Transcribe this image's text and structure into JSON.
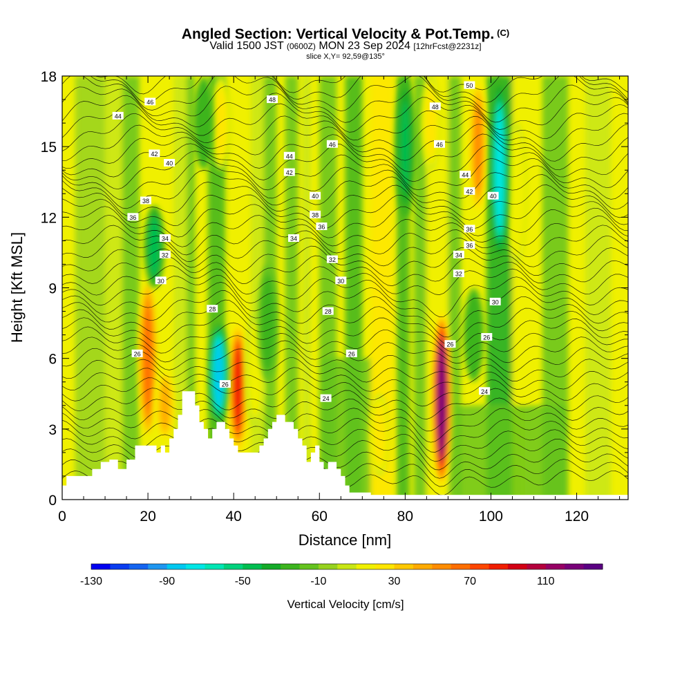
{
  "header": {
    "title": "Angled Section: Vertical Velocity & Pot.Temp.",
    "copyright": "(C)",
    "valid_prefix": "Valid 1500 JST",
    "valid_utc": "(0600Z)",
    "valid_date": "MON 23 Sep 2024",
    "forecast": "[12hrFcst@2231z]",
    "slice": "slice X,Y= 92,59@135°"
  },
  "chart_data": {
    "type": "heatmap",
    "title": "Angled Section: Vertical Velocity & Pot.Temp.",
    "xlabel": "Distance [nm]",
    "ylabel": "Height [Kft MSL]",
    "xlim": [
      0,
      132
    ],
    "ylim": [
      0,
      18
    ],
    "x_ticks": [
      "0",
      "20",
      "40",
      "60",
      "80",
      "100",
      "120"
    ],
    "y_ticks": [
      "0",
      "3",
      "6",
      "9",
      "12",
      "15",
      "18"
    ],
    "fill_variable": "Vertical Velocity [cm/s]",
    "colorbar": {
      "label": "Vertical Velocity [cm/s]",
      "tick_labels": [
        "-130",
        "-90",
        "-50",
        "-10",
        "30",
        "70",
        "110"
      ],
      "colors": [
        "#0000f0",
        "#0a3cf0",
        "#1464f0",
        "#1e96f0",
        "#00c8f0",
        "#00e6e6",
        "#00e6b4",
        "#00d27d",
        "#00be50",
        "#14aa28",
        "#3cb41e",
        "#64c31e",
        "#96d21e",
        "#c8e614",
        "#f0f000",
        "#ffe600",
        "#ffc800",
        "#ffaa00",
        "#ff8c00",
        "#ff6e00",
        "#ff4600",
        "#f01e00",
        "#d20014",
        "#b4003c",
        "#960064",
        "#780078",
        "#5a0082"
      ]
    },
    "updraft_cores": [
      {
        "x": 20,
        "y_bottom": 2.5,
        "y_top": 9.5,
        "value": 75
      },
      {
        "x": 24,
        "y_bottom": 2.5,
        "y_top": 5.5,
        "value": 55
      },
      {
        "x": 41,
        "y_bottom": 2.0,
        "y_top": 7.5,
        "value": 95
      },
      {
        "x": 45,
        "y_bottom": 3.0,
        "y_top": 8.0,
        "value": 20
      },
      {
        "x": 74,
        "y_bottom": 1.0,
        "y_top": 4.5,
        "value": 35
      },
      {
        "x": 88.5,
        "y_bottom": 0.5,
        "y_top": 8.0,
        "value": 135
      },
      {
        "x": 97,
        "y_bottom": 12,
        "y_top": 18,
        "value": 60
      },
      {
        "x": 86,
        "y_bottom": 14,
        "y_top": 18,
        "value": 30
      },
      {
        "x": 106,
        "y_bottom": 10,
        "y_top": 16,
        "value": 25
      },
      {
        "x": 37,
        "y_bottom": 14,
        "y_top": 18,
        "value": 30
      }
    ],
    "downdraft_cores": [
      {
        "x": 36.5,
        "y_bottom": 3.2,
        "y_top": 7.5,
        "value": -85
      },
      {
        "x": 102,
        "y_bottom": 10,
        "y_top": 18,
        "value": -70
      },
      {
        "x": 21.5,
        "y_bottom": 9.0,
        "y_top": 12.5,
        "value": -45
      },
      {
        "x": 80,
        "y_bottom": 12,
        "y_top": 18,
        "value": -40
      },
      {
        "x": 33,
        "y_bottom": 14,
        "y_top": 18,
        "value": -25
      },
      {
        "x": 96,
        "y_bottom": 5,
        "y_top": 9,
        "value": -25
      },
      {
        "x": 48,
        "y_bottom": 5,
        "y_top": 10,
        "value": -20
      }
    ],
    "terrain": [
      [
        0,
        0.6
      ],
      [
        1,
        0.6
      ],
      [
        1,
        1
      ],
      [
        7,
        1
      ],
      [
        7,
        1.3
      ],
      [
        9,
        1.3
      ],
      [
        9,
        1.6
      ],
      [
        11,
        1.6
      ],
      [
        11,
        1.7
      ],
      [
        13,
        1.7
      ],
      [
        13,
        1.3
      ],
      [
        15,
        1.3
      ],
      [
        15,
        1.7
      ],
      [
        17,
        1.7
      ],
      [
        17,
        2.3
      ],
      [
        22,
        2.3
      ],
      [
        22,
        2
      ],
      [
        23,
        2
      ],
      [
        23,
        2.3
      ],
      [
        24,
        2.3
      ],
      [
        24,
        2
      ],
      [
        25,
        2
      ],
      [
        25,
        2.6
      ],
      [
        26,
        2.6
      ],
      [
        26,
        3
      ],
      [
        27,
        3
      ],
      [
        27,
        3.6
      ],
      [
        28,
        3.6
      ],
      [
        28,
        4.6
      ],
      [
        31,
        4.6
      ],
      [
        31,
        4.0
      ],
      [
        32,
        4.0
      ],
      [
        32,
        3.3
      ],
      [
        33,
        3.3
      ],
      [
        33,
        3.0
      ],
      [
        34,
        3.0
      ],
      [
        34,
        2.6
      ],
      [
        35,
        2.6
      ],
      [
        35,
        3.0
      ],
      [
        36,
        3.0
      ],
      [
        36,
        3.3
      ],
      [
        38,
        3.3
      ],
      [
        38,
        3.0
      ],
      [
        39,
        3.0
      ],
      [
        39,
        2.6
      ],
      [
        40,
        2.6
      ],
      [
        40,
        2.3
      ],
      [
        41,
        2.3
      ],
      [
        41,
        2.0
      ],
      [
        46,
        2.0
      ],
      [
        46,
        2.3
      ],
      [
        47,
        2.3
      ],
      [
        47,
        2.6
      ],
      [
        48,
        2.6
      ],
      [
        48,
        3.0
      ],
      [
        49,
        3.0
      ],
      [
        49,
        3.3
      ],
      [
        50,
        3.3
      ],
      [
        50,
        3.6
      ],
      [
        52,
        3.6
      ],
      [
        52,
        3.3
      ],
      [
        54,
        3.3
      ],
      [
        54,
        3.0
      ],
      [
        55,
        3.0
      ],
      [
        55,
        2.6
      ],
      [
        56,
        2.6
      ],
      [
        56,
        2.3
      ],
      [
        57,
        2.3
      ],
      [
        57,
        1.6
      ],
      [
        58,
        1.6
      ],
      [
        58,
        2.0
      ],
      [
        59,
        2.0
      ],
      [
        59,
        2.3
      ],
      [
        60,
        2.3
      ],
      [
        60,
        1.6
      ],
      [
        61,
        1.6
      ],
      [
        61,
        1.3
      ],
      [
        62,
        1.3
      ],
      [
        62,
        1.6
      ],
      [
        64,
        1.6
      ],
      [
        64,
        1.3
      ],
      [
        65,
        1.3
      ],
      [
        65,
        1.0
      ],
      [
        66,
        1.0
      ],
      [
        66,
        0.6
      ],
      [
        67,
        0.6
      ],
      [
        67,
        0.3
      ],
      [
        72,
        0.3
      ],
      [
        72,
        0
      ]
    ],
    "theta_contours": [
      {
        "label": "24",
        "x": 61.5,
        "y": 4.3
      },
      {
        "label": "24",
        "x": 98.5,
        "y": 4.6
      },
      {
        "label": "26",
        "x": 17.5,
        "y": 6.2
      },
      {
        "label": "26",
        "x": 67.5,
        "y": 6.2
      },
      {
        "label": "26",
        "x": 90.5,
        "y": 6.6
      },
      {
        "label": "26",
        "x": 38,
        "y": 4.9
      },
      {
        "label": "26",
        "x": 99,
        "y": 6.9
      },
      {
        "label": "28",
        "x": 35,
        "y": 8.1
      },
      {
        "label": "28",
        "x": 62,
        "y": 8.0
      },
      {
        "label": "30",
        "x": 23,
        "y": 9.3
      },
      {
        "label": "30",
        "x": 65,
        "y": 9.3
      },
      {
        "label": "30",
        "x": 101,
        "y": 8.4
      },
      {
        "label": "32",
        "x": 24,
        "y": 10.4
      },
      {
        "label": "32",
        "x": 63,
        "y": 10.2
      },
      {
        "label": "32",
        "x": 92.5,
        "y": 9.6
      },
      {
        "label": "34",
        "x": 24,
        "y": 11.1
      },
      {
        "label": "34",
        "x": 54,
        "y": 11.1
      },
      {
        "label": "34",
        "x": 92.5,
        "y": 10.4
      },
      {
        "label": "36",
        "x": 16.5,
        "y": 12.0
      },
      {
        "label": "36",
        "x": 60.5,
        "y": 11.6
      },
      {
        "label": "36",
        "x": 95,
        "y": 11.5
      },
      {
        "label": "36",
        "x": 95,
        "y": 10.8
      },
      {
        "label": "38",
        "x": 19.5,
        "y": 12.7
      },
      {
        "label": "38",
        "x": 59,
        "y": 12.1
      },
      {
        "label": "40",
        "x": 25,
        "y": 14.3
      },
      {
        "label": "40",
        "x": 59,
        "y": 12.9
      },
      {
        "label": "40",
        "x": 100.5,
        "y": 12.9
      },
      {
        "label": "42",
        "x": 21.5,
        "y": 14.7
      },
      {
        "label": "42",
        "x": 53,
        "y": 13.9
      },
      {
        "label": "42",
        "x": 95,
        "y": 13.1
      },
      {
        "label": "44",
        "x": 13,
        "y": 16.3
      },
      {
        "label": "44",
        "x": 53,
        "y": 14.6
      },
      {
        "label": "44",
        "x": 94,
        "y": 13.8
      },
      {
        "label": "46",
        "x": 20.5,
        "y": 16.9
      },
      {
        "label": "46",
        "x": 63,
        "y": 15.1
      },
      {
        "label": "46",
        "x": 88,
        "y": 15.1
      },
      {
        "label": "48",
        "x": 49,
        "y": 17.0
      },
      {
        "label": "48",
        "x": 87,
        "y": 16.7
      },
      {
        "label": "50",
        "x": 95,
        "y": 17.6
      }
    ]
  }
}
